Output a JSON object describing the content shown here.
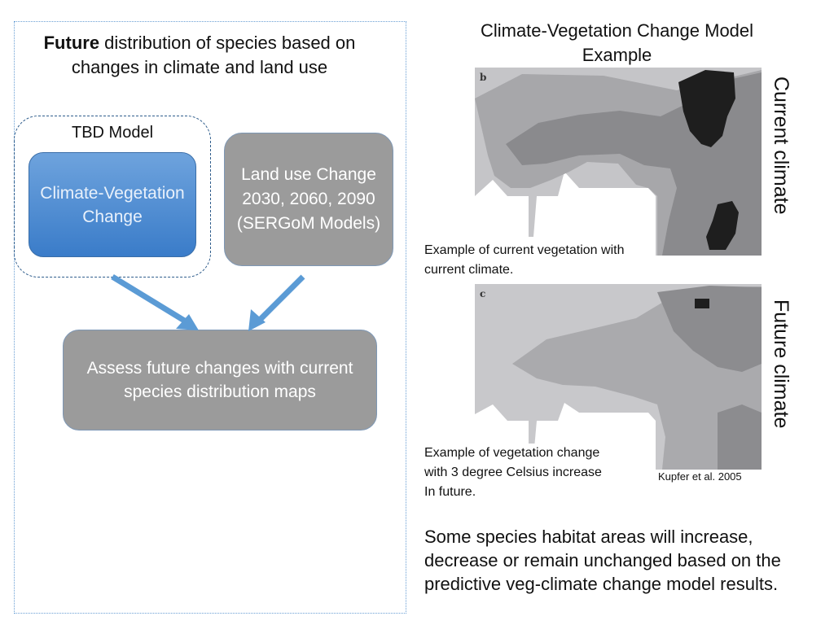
{
  "left": {
    "title_bold": "Future",
    "title_rest": " distribution of species based on changes in climate and land use",
    "tbd_label": "TBD Model",
    "climate_box": "Climate-Vegetation Change",
    "landuse_box": "Land use Change 2030, 2060, 2090 (SERGoM Models)",
    "assess_box": "Assess future changes with current species distribution maps"
  },
  "right": {
    "title": "Climate-Vegetation Change Model Example",
    "map_current_letter": "b",
    "map_future_letter": "c",
    "current_label": "Current climate",
    "future_label": "Future climate",
    "caption_current": "Example of current vegetation with current climate.",
    "caption_future_line1": "Example of vegetation change",
    "caption_future_line2": "with 3 degree Celsius increase",
    "caption_future_line3": "In future.",
    "citation": "Kupfer et al. 2005",
    "conclusion": "Some species habitat areas will increase, decrease or remain unchanged based on the predictive veg-climate change model results."
  },
  "colors": {
    "blue_box": "#4a8bd4",
    "gray_box": "#9b9b9b",
    "arrow": "#5b9bd5",
    "dashed_border": "#2f5d8c"
  }
}
